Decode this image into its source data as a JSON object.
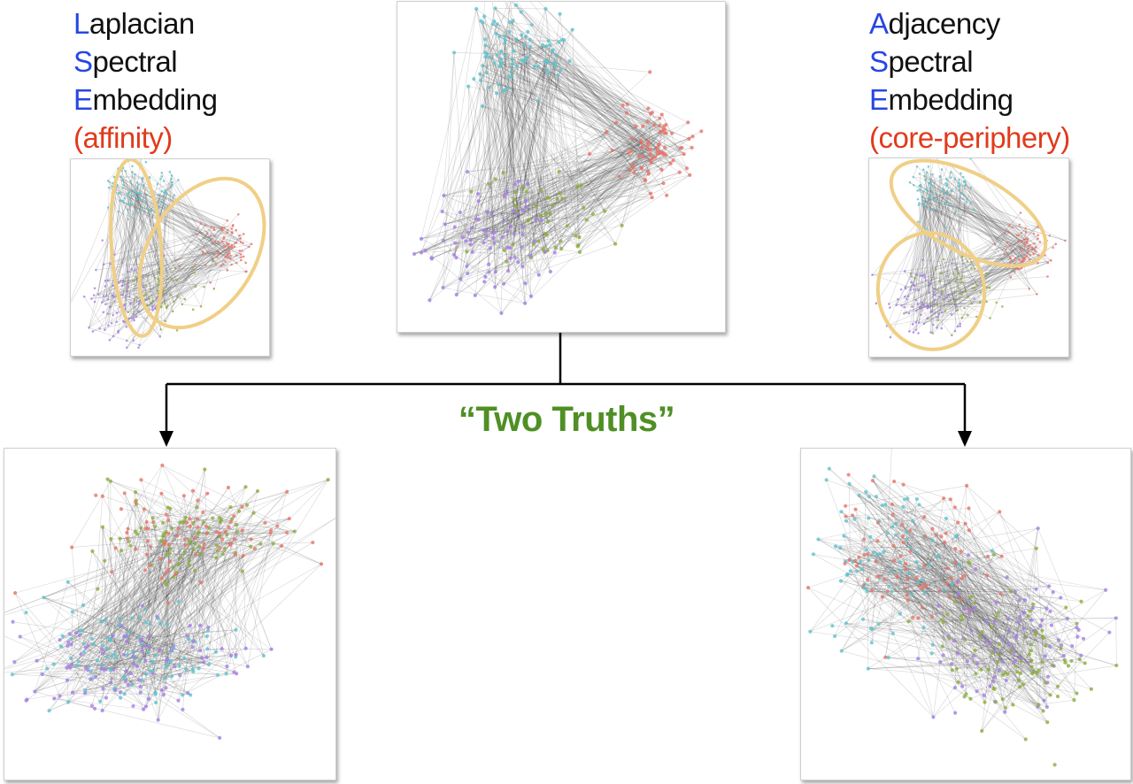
{
  "left_label": {
    "lines": [
      {
        "initial": "L",
        "rest": "aplacian"
      },
      {
        "initial": "S",
        "rest": "pectral"
      },
      {
        "initial": "E",
        "rest": "mbedding"
      }
    ],
    "note": "(affinity)"
  },
  "right_label": {
    "lines": [
      {
        "initial": "A",
        "rest": "djacency"
      },
      {
        "initial": "S",
        "rest": "pectral"
      },
      {
        "initial": "E",
        "rest": "mbedding"
      }
    ],
    "note": "(core-periphery)"
  },
  "center_text": "“Two Truths”",
  "colors": {
    "cyan": "#5fc3cc",
    "red": "#e8746a",
    "purple": "#a57ee6",
    "green": "#8cae3c",
    "ellipse": "#f0cf86",
    "arrow": "#000000",
    "title_green": "#4f8f25",
    "initial_blue": "#2846e4",
    "note_red": "#e13a1c"
  }
}
